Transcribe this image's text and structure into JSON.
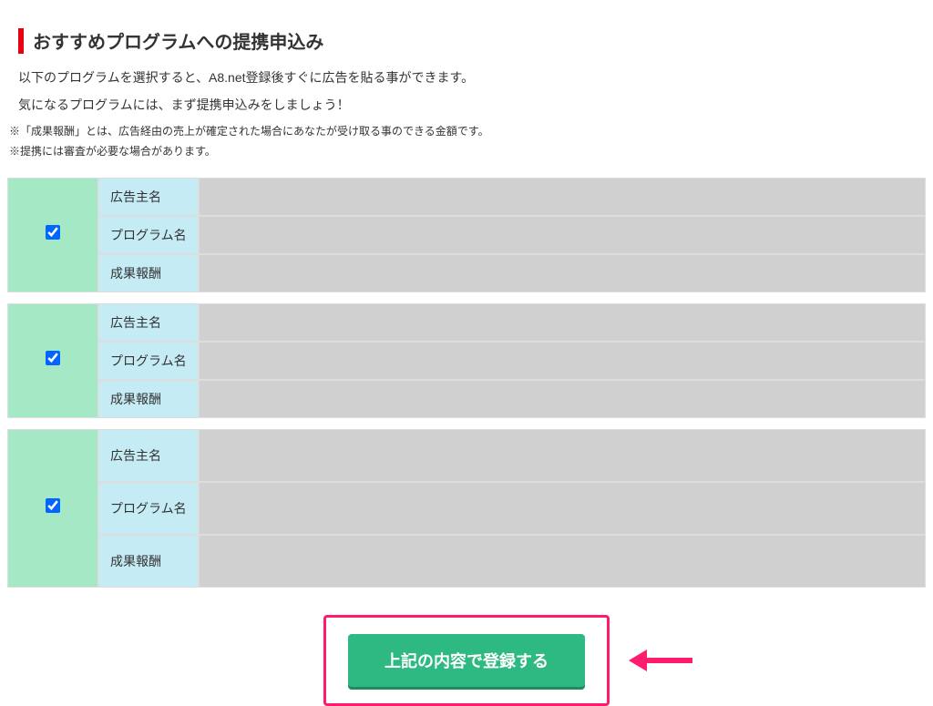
{
  "header": {
    "title": "おすすめプログラムへの提携申込み"
  },
  "description": {
    "line1": "以下のプログラムを選択すると、A8.net登録後すぐに広告を貼る事ができます。",
    "line2": "気になるプログラムには、まず提携申込みをしましょう！"
  },
  "notes": {
    "note1": "※「成果報酬」とは、広告経由の売上が確定された場合にあなたが受け取る事のできる金額です。",
    "note2": "※提携には審査が必要な場合があります。"
  },
  "programs": [
    {
      "checked": true,
      "labels": {
        "advertiser": "広告主名",
        "program": "プログラム名",
        "reward": "成果報酬"
      }
    },
    {
      "checked": true,
      "labels": {
        "advertiser": "広告主名",
        "program": "プログラム名",
        "reward": "成果報酬"
      }
    },
    {
      "checked": true,
      "labels": {
        "advertiser": "広告主名",
        "program": "プログラム名",
        "reward": "成果報酬"
      }
    }
  ],
  "button": {
    "label": "上記の内容で登録する"
  },
  "colors": {
    "accent_red": "#e60012",
    "checkbox_bg": "#a5e8c6",
    "label_bg": "#c5ebf5",
    "content_bg": "#d0d0d0",
    "button_bg": "#2db981",
    "button_shadow": "#1f8a5f",
    "highlight_pink": "#ff1b6e",
    "checkbox_accent": "#0066ff"
  }
}
